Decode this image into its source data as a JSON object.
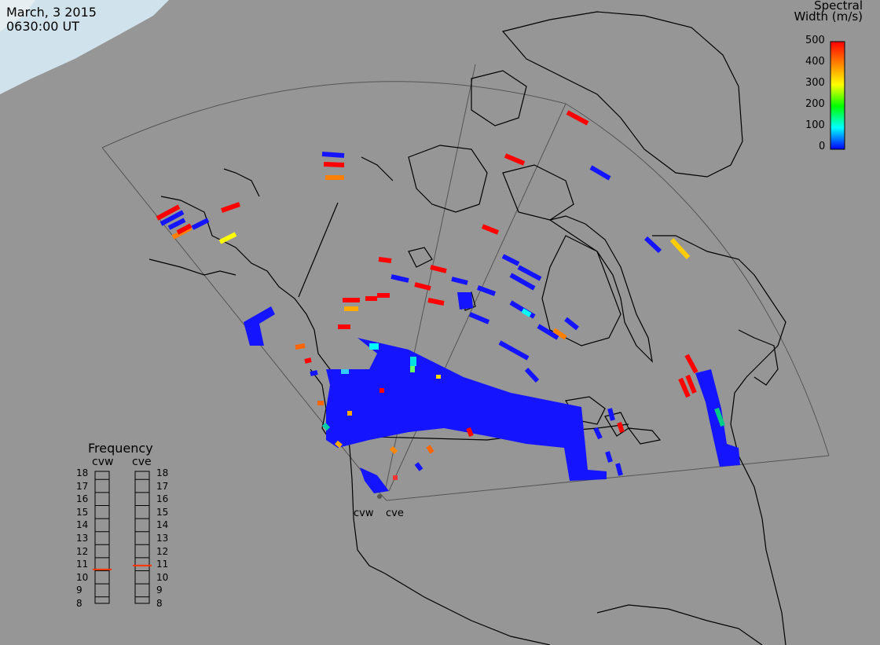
{
  "header": {
    "date": "March, 3 2015",
    "time": "0630:00 UT"
  },
  "colorbar": {
    "title_line1": "Spectral",
    "title_line2": "Width (m/s)",
    "ticks": [
      "500",
      "400",
      "300",
      "200",
      "100",
      "0"
    ],
    "colors": [
      "#ff0000",
      "#ff8000",
      "#ffff00",
      "#00ff00",
      "#00ffff",
      "#0000ff"
    ]
  },
  "frequency_panel": {
    "title": "Frequency",
    "radars": [
      {
        "name": "cvw",
        "freq_mhz": 10.6
      },
      {
        "name": "cve",
        "freq_mhz": 10.9
      }
    ],
    "scale": [
      "18",
      "17",
      "16",
      "15",
      "14",
      "13",
      "12",
      "11",
      "10",
      "9",
      "8"
    ]
  },
  "radar_sites": [
    {
      "name": "cvw"
    },
    {
      "name": "cve"
    }
  ],
  "colors": {
    "background": "#969696",
    "land_outline": "#000000",
    "fov_outline": "#505050",
    "scatter_main": "#1414ff",
    "marker": "#ff4500"
  }
}
